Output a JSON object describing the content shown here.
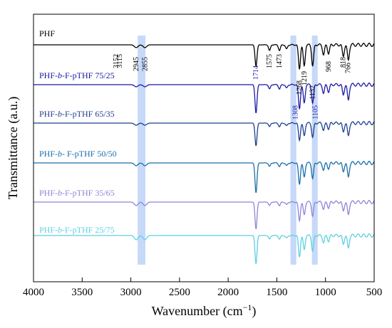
{
  "chart_data": {
    "type": "line",
    "xlabel": "Wavenumber (cm",
    "xlabel_sup": "−1",
    "xlabel_close": ")",
    "ylabel": "Transmittance (a.u.)",
    "xlim": [
      4000,
      500
    ],
    "x_reversed": true,
    "x_ticks": [
      4000,
      3500,
      3000,
      2500,
      2000,
      1500,
      1000,
      500
    ],
    "highlight_bands": [
      {
        "from": 2930,
        "to": 2850,
        "color": "#a9c4f5"
      },
      {
        "from": 1360,
        "to": 1300,
        "color": "#a9c4f5"
      },
      {
        "from": 1140,
        "to": 1080,
        "color": "#a9c4f5"
      }
    ],
    "series": [
      {
        "name": "PHF",
        "color": "#000000"
      },
      {
        "name": "PHF-b-F-pTHF 75/25",
        "name_parts": [
          "PHF-",
          "b",
          "-F-pTHF 75/25"
        ],
        "color": "#1a1aa6"
      },
      {
        "name": "PHF-b-F-pTHF 65/35",
        "name_parts": [
          "PHF-",
          "b",
          "-F-pTHF 65/35"
        ],
        "color": "#1f3f8f"
      },
      {
        "name": "PHF-b- F-pTHF 50/50",
        "name_parts": [
          "PHF-",
          "b",
          "- F-pTHF 50/50"
        ],
        "color": "#1a6fa8"
      },
      {
        "name": "PHF-b-F-pTHF 35/65",
        "name_parts": [
          "PHF-",
          "b",
          "-F-pTHF 35/65"
        ],
        "color": "#8f85d6"
      },
      {
        "name": "PHF-b-F-pTHF 25/75",
        "name_parts": [
          "PHF-",
          "b",
          "-F-pTHF 25/75"
        ],
        "color": "#5ed0e0"
      }
    ],
    "peak_labels": [
      {
        "x": 3152,
        "text": "3152"
      },
      {
        "x": 3115,
        "text": "3115"
      },
      {
        "x": 2945,
        "text": "2945"
      },
      {
        "x": 2855,
        "text": "2855"
      },
      {
        "x": 1714,
        "text": "1714"
      },
      {
        "x": 1575,
        "text": "1575"
      },
      {
        "x": 1473,
        "text": "1473"
      },
      {
        "x": 1308,
        "text": "1308"
      },
      {
        "x": 1268,
        "text": "1268"
      },
      {
        "x": 1219,
        "text": "1219"
      },
      {
        "x": 1132,
        "text": "1132"
      },
      {
        "x": 1105,
        "text": "1105"
      },
      {
        "x": 968,
        "text": "968"
      },
      {
        "x": 818,
        "text": "818"
      },
      {
        "x": 766,
        "text": "766"
      }
    ]
  }
}
